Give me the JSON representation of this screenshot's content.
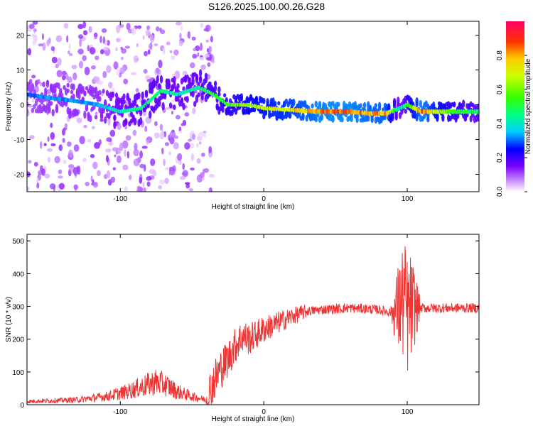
{
  "title": "S126.2025.100.00.26.G28",
  "colors": {
    "snr_line": "#ee3333",
    "axis": "#000000"
  },
  "chart_data": [
    {
      "type": "heatmap",
      "title": "S126.2025.100.00.26.G28",
      "xlabel": "Height of straight line (km)",
      "ylabel": "Frequency (Hz)",
      "xlim": [
        -165,
        150
      ],
      "ylim": [
        -25,
        24
      ],
      "xticks": [
        -100,
        0,
        100
      ],
      "xtick_labels": [
        "-100",
        "0",
        "100"
      ],
      "yticks": [
        -20,
        -10,
        0,
        10,
        20
      ],
      "ytick_labels": [
        "-20",
        "-10",
        "0",
        "10",
        "20"
      ],
      "colorbar": {
        "label": "Normalized spectral amplitude",
        "range": [
          0,
          1
        ],
        "ticks": [
          0.0,
          0.2,
          0.4,
          0.6,
          0.8
        ],
        "tick_labels": [
          "0.0",
          "0.2",
          "0.4",
          "0.6",
          "0.8"
        ]
      },
      "ridge": [
        {
          "x": -165,
          "y": 3,
          "amp": 0.3
        },
        {
          "x": -150,
          "y": 2,
          "amp": 0.35
        },
        {
          "x": -130,
          "y": 1,
          "amp": 0.35
        },
        {
          "x": -115,
          "y": 0,
          "amp": 0.35
        },
        {
          "x": -100,
          "y": -2,
          "amp": 0.45
        },
        {
          "x": -85,
          "y": -1,
          "amp": 0.5
        },
        {
          "x": -72,
          "y": 4,
          "amp": 0.5
        },
        {
          "x": -60,
          "y": 3,
          "amp": 0.45
        },
        {
          "x": -45,
          "y": 5,
          "amp": 0.5
        },
        {
          "x": -35,
          "y": 3,
          "amp": 0.55
        },
        {
          "x": -25,
          "y": 0,
          "amp": 0.6
        },
        {
          "x": -10,
          "y": 0,
          "amp": 0.7
        },
        {
          "x": 0,
          "y": -1,
          "amp": 0.75
        },
        {
          "x": 20,
          "y": -1.5,
          "amp": 0.8
        },
        {
          "x": 40,
          "y": -2,
          "amp": 0.9
        },
        {
          "x": 60,
          "y": -2,
          "amp": 0.9
        },
        {
          "x": 75,
          "y": -2.5,
          "amp": 0.85
        },
        {
          "x": 85,
          "y": -2.5,
          "amp": 0.85
        },
        {
          "x": 95,
          "y": -1,
          "amp": 0.4
        },
        {
          "x": 100,
          "y": 0,
          "amp": 0.6
        },
        {
          "x": 110,
          "y": -2,
          "amp": 0.9
        },
        {
          "x": 130,
          "y": -2,
          "amp": 0.6
        },
        {
          "x": 150,
          "y": -2,
          "amp": 0.5
        }
      ]
    },
    {
      "type": "line",
      "xlabel": "Height of straight line (km)",
      "ylabel": "SNR (10 * v/v)",
      "xlim": [
        -165,
        150
      ],
      "ylim": [
        0,
        520
      ],
      "xticks": [
        -100,
        0,
        100
      ],
      "xtick_labels": [
        "-100",
        "0",
        "100"
      ],
      "yticks": [
        0,
        100,
        200,
        300,
        400,
        500
      ],
      "ytick_labels": [
        "0",
        "100",
        "200",
        "300",
        "400",
        "500"
      ],
      "series": [
        {
          "name": "SNR",
          "x": [
            -165,
            -150,
            -130,
            -110,
            -95,
            -85,
            -75,
            -68,
            -60,
            -50,
            -40,
            -35,
            -30,
            -25,
            -20,
            -15,
            -10,
            -5,
            0,
            10,
            20,
            30,
            40,
            60,
            80,
            90,
            95,
            98,
            100,
            102,
            105,
            110,
            130,
            150
          ],
          "y": [
            10,
            12,
            15,
            25,
            40,
            55,
            70,
            60,
            40,
            25,
            15,
            70,
            110,
            140,
            180,
            210,
            200,
            215,
            230,
            250,
            270,
            285,
            290,
            295,
            290,
            280,
            300,
            320,
            270,
            290,
            300,
            295,
            295,
            295
          ]
        }
      ]
    }
  ]
}
